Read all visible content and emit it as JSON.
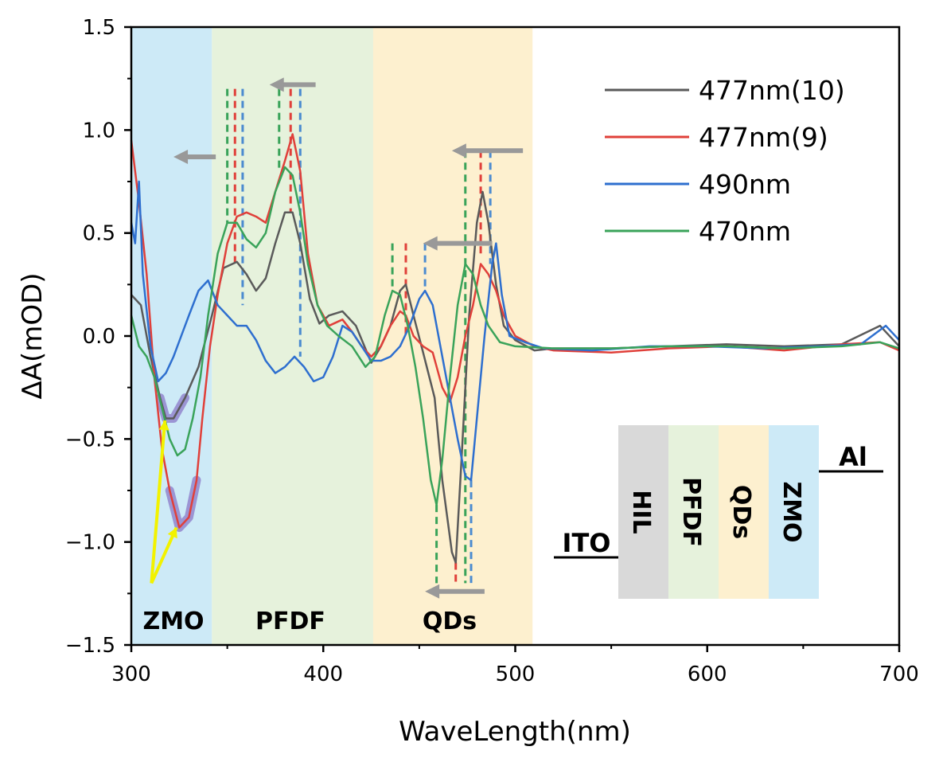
{
  "chart_data": {
    "type": "line",
    "title": "",
    "xlabel": "WaveLength(nm)",
    "ylabel": "ΔA(mOD)",
    "xlim": [
      300,
      700
    ],
    "ylim": [
      -1.5,
      1.5
    ],
    "xticks": [
      "300",
      "400",
      "500",
      "600",
      "700"
    ],
    "yticks": [
      "1.5",
      "1.0",
      "0.5",
      "0.0",
      "−0.5",
      "−1.0",
      "−1.5"
    ],
    "legend_position": "top-right",
    "regions": [
      {
        "label": "ZMO",
        "x_range": [
          300,
          342
        ],
        "color": "#cdeaf7"
      },
      {
        "label": "PFDF",
        "x_range": [
          342,
          426
        ],
        "color": "#e6f2dc"
      },
      {
        "label": "QDs",
        "x_range": [
          426,
          509
        ],
        "color": "#fdf0cf"
      }
    ],
    "series": [
      {
        "name": "477nm(10)",
        "color": "#5a5a5a",
        "points": [
          [
            300,
            0.2
          ],
          [
            305,
            0.15
          ],
          [
            310,
            -0.1
          ],
          [
            315,
            -0.3
          ],
          [
            318,
            -0.4
          ],
          [
            322,
            -0.4
          ],
          [
            328,
            -0.3
          ],
          [
            335,
            -0.15
          ],
          [
            342,
            0.1
          ],
          [
            348,
            0.33
          ],
          [
            355,
            0.36
          ],
          [
            360,
            0.3
          ],
          [
            365,
            0.22
          ],
          [
            370,
            0.28
          ],
          [
            375,
            0.45
          ],
          [
            380,
            0.6
          ],
          [
            384,
            0.6
          ],
          [
            388,
            0.45
          ],
          [
            393,
            0.18
          ],
          [
            398,
            0.06
          ],
          [
            403,
            0.1
          ],
          [
            410,
            0.12
          ],
          [
            417,
            0.05
          ],
          [
            425,
            -0.13
          ],
          [
            430,
            -0.05
          ],
          [
            435,
            0.05
          ],
          [
            440,
            0.22
          ],
          [
            443,
            0.25
          ],
          [
            447,
            0.1
          ],
          [
            452,
            -0.08
          ],
          [
            458,
            -0.3
          ],
          [
            462,
            -0.7
          ],
          [
            467,
            -1.05
          ],
          [
            469,
            -1.1
          ],
          [
            472,
            -0.6
          ],
          [
            476,
            0.1
          ],
          [
            480,
            0.55
          ],
          [
            483,
            0.7
          ],
          [
            486,
            0.55
          ],
          [
            490,
            0.25
          ],
          [
            494,
            0.05
          ],
          [
            500,
            -0.02
          ],
          [
            510,
            -0.07
          ],
          [
            520,
            -0.06
          ],
          [
            550,
            -0.06
          ],
          [
            580,
            -0.05
          ],
          [
            610,
            -0.04
          ],
          [
            640,
            -0.05
          ],
          [
            670,
            -0.04
          ],
          [
            690,
            0.05
          ],
          [
            700,
            -0.05
          ]
        ]
      },
      {
        "name": "477nm(9)",
        "color": "#e0403a",
        "points": [
          [
            300,
            0.95
          ],
          [
            304,
            0.65
          ],
          [
            308,
            0.3
          ],
          [
            312,
            -0.2
          ],
          [
            316,
            -0.55
          ],
          [
            320,
            -0.75
          ],
          [
            325,
            -0.93
          ],
          [
            330,
            -0.88
          ],
          [
            334,
            -0.7
          ],
          [
            337,
            -0.4
          ],
          [
            341,
            -0.05
          ],
          [
            345,
            0.2
          ],
          [
            350,
            0.45
          ],
          [
            355,
            0.58
          ],
          [
            360,
            0.6
          ],
          [
            365,
            0.58
          ],
          [
            370,
            0.55
          ],
          [
            375,
            0.7
          ],
          [
            380,
            0.85
          ],
          [
            384,
            0.98
          ],
          [
            388,
            0.8
          ],
          [
            392,
            0.4
          ],
          [
            397,
            0.15
          ],
          [
            403,
            0.05
          ],
          [
            410,
            0.08
          ],
          [
            415,
            0.02
          ],
          [
            420,
            -0.05
          ],
          [
            425,
            -0.1
          ],
          [
            430,
            -0.05
          ],
          [
            435,
            0.05
          ],
          [
            440,
            0.12
          ],
          [
            443,
            0.1
          ],
          [
            447,
            0.0
          ],
          [
            452,
            -0.05
          ],
          [
            457,
            -0.08
          ],
          [
            462,
            -0.25
          ],
          [
            466,
            -0.32
          ],
          [
            470,
            -0.2
          ],
          [
            474,
            -0.0
          ],
          [
            478,
            0.15
          ],
          [
            482,
            0.35
          ],
          [
            486,
            0.3
          ],
          [
            490,
            0.22
          ],
          [
            494,
            0.1
          ],
          [
            500,
            0.0
          ],
          [
            510,
            -0.05
          ],
          [
            520,
            -0.07
          ],
          [
            550,
            -0.08
          ],
          [
            580,
            -0.06
          ],
          [
            610,
            -0.05
          ],
          [
            640,
            -0.07
          ],
          [
            670,
            -0.04
          ],
          [
            690,
            -0.03
          ],
          [
            700,
            -0.07
          ]
        ]
      },
      {
        "name": "490nm",
        "color": "#2e6fcf",
        "points": [
          [
            300,
            0.55
          ],
          [
            302,
            0.45
          ],
          [
            304,
            0.75
          ],
          [
            306,
            0.3
          ],
          [
            310,
            -0.05
          ],
          [
            314,
            -0.22
          ],
          [
            318,
            -0.18
          ],
          [
            322,
            -0.1
          ],
          [
            326,
            0.0
          ],
          [
            330,
            0.1
          ],
          [
            335,
            0.22
          ],
          [
            340,
            0.27
          ],
          [
            345,
            0.15
          ],
          [
            350,
            0.1
          ],
          [
            355,
            0.05
          ],
          [
            360,
            0.05
          ],
          [
            365,
            -0.02
          ],
          [
            370,
            -0.12
          ],
          [
            375,
            -0.18
          ],
          [
            380,
            -0.15
          ],
          [
            385,
            -0.1
          ],
          [
            390,
            -0.15
          ],
          [
            395,
            -0.22
          ],
          [
            400,
            -0.2
          ],
          [
            405,
            -0.1
          ],
          [
            410,
            0.05
          ],
          [
            415,
            0.02
          ],
          [
            420,
            -0.05
          ],
          [
            425,
            -0.12
          ],
          [
            430,
            -0.12
          ],
          [
            435,
            -0.1
          ],
          [
            440,
            -0.05
          ],
          [
            445,
            0.05
          ],
          [
            450,
            0.18
          ],
          [
            453,
            0.22
          ],
          [
            457,
            0.15
          ],
          [
            462,
            -0.1
          ],
          [
            466,
            -0.3
          ],
          [
            470,
            -0.5
          ],
          [
            474,
            -0.68
          ],
          [
            477,
            -0.7
          ],
          [
            480,
            -0.4
          ],
          [
            484,
            0.0
          ],
          [
            488,
            0.35
          ],
          [
            490,
            0.45
          ],
          [
            493,
            0.2
          ],
          [
            497,
            0.0
          ],
          [
            505,
            -0.03
          ],
          [
            515,
            -0.06
          ],
          [
            540,
            -0.07
          ],
          [
            570,
            -0.05
          ],
          [
            600,
            -0.05
          ],
          [
            630,
            -0.06
          ],
          [
            660,
            -0.05
          ],
          [
            680,
            -0.04
          ],
          [
            693,
            0.05
          ],
          [
            700,
            -0.02
          ]
        ]
      },
      {
        "name": "470nm",
        "color": "#3aa35a",
        "points": [
          [
            300,
            0.1
          ],
          [
            304,
            -0.05
          ],
          [
            308,
            -0.1
          ],
          [
            312,
            -0.2
          ],
          [
            316,
            -0.35
          ],
          [
            320,
            -0.5
          ],
          [
            324,
            -0.58
          ],
          [
            328,
            -0.55
          ],
          [
            332,
            -0.4
          ],
          [
            336,
            -0.2
          ],
          [
            340,
            0.1
          ],
          [
            345,
            0.4
          ],
          [
            350,
            0.55
          ],
          [
            355,
            0.55
          ],
          [
            360,
            0.47
          ],
          [
            365,
            0.43
          ],
          [
            370,
            0.5
          ],
          [
            375,
            0.7
          ],
          [
            380,
            0.82
          ],
          [
            384,
            0.78
          ],
          [
            388,
            0.6
          ],
          [
            392,
            0.35
          ],
          [
            397,
            0.15
          ],
          [
            402,
            0.05
          ],
          [
            408,
            0.0
          ],
          [
            415,
            -0.05
          ],
          [
            422,
            -0.15
          ],
          [
            427,
            -0.1
          ],
          [
            432,
            0.1
          ],
          [
            436,
            0.22
          ],
          [
            440,
            0.2
          ],
          [
            444,
            0.05
          ],
          [
            448,
            -0.15
          ],
          [
            452,
            -0.4
          ],
          [
            456,
            -0.7
          ],
          [
            459,
            -0.82
          ],
          [
            462,
            -0.6
          ],
          [
            466,
            -0.2
          ],
          [
            470,
            0.15
          ],
          [
            474,
            0.35
          ],
          [
            478,
            0.3
          ],
          [
            482,
            0.15
          ],
          [
            486,
            0.05
          ],
          [
            492,
            -0.03
          ],
          [
            500,
            -0.05
          ],
          [
            520,
            -0.06
          ],
          [
            550,
            -0.06
          ],
          [
            580,
            -0.05
          ],
          [
            610,
            -0.05
          ],
          [
            640,
            -0.06
          ],
          [
            670,
            -0.05
          ],
          [
            690,
            -0.03
          ],
          [
            700,
            -0.06
          ]
        ]
      }
    ],
    "annotations": {
      "bottom_labels": [
        "ZMO",
        "PFDF",
        "QDs"
      ],
      "device_layers": [
        "HIL",
        "PFDF",
        "QDs",
        "ZMO"
      ],
      "electrodes": [
        "ITO",
        "Al"
      ]
    }
  },
  "colors": {
    "arrow_gray": "#999999",
    "highlight_purple": "#8a78c8",
    "yellow_arrow": "#f2f200",
    "hil": "#d9d9d9",
    "pfdf": "#e6f2dc",
    "qds": "#fdf0cf",
    "zmo": "#cdeaf7"
  }
}
